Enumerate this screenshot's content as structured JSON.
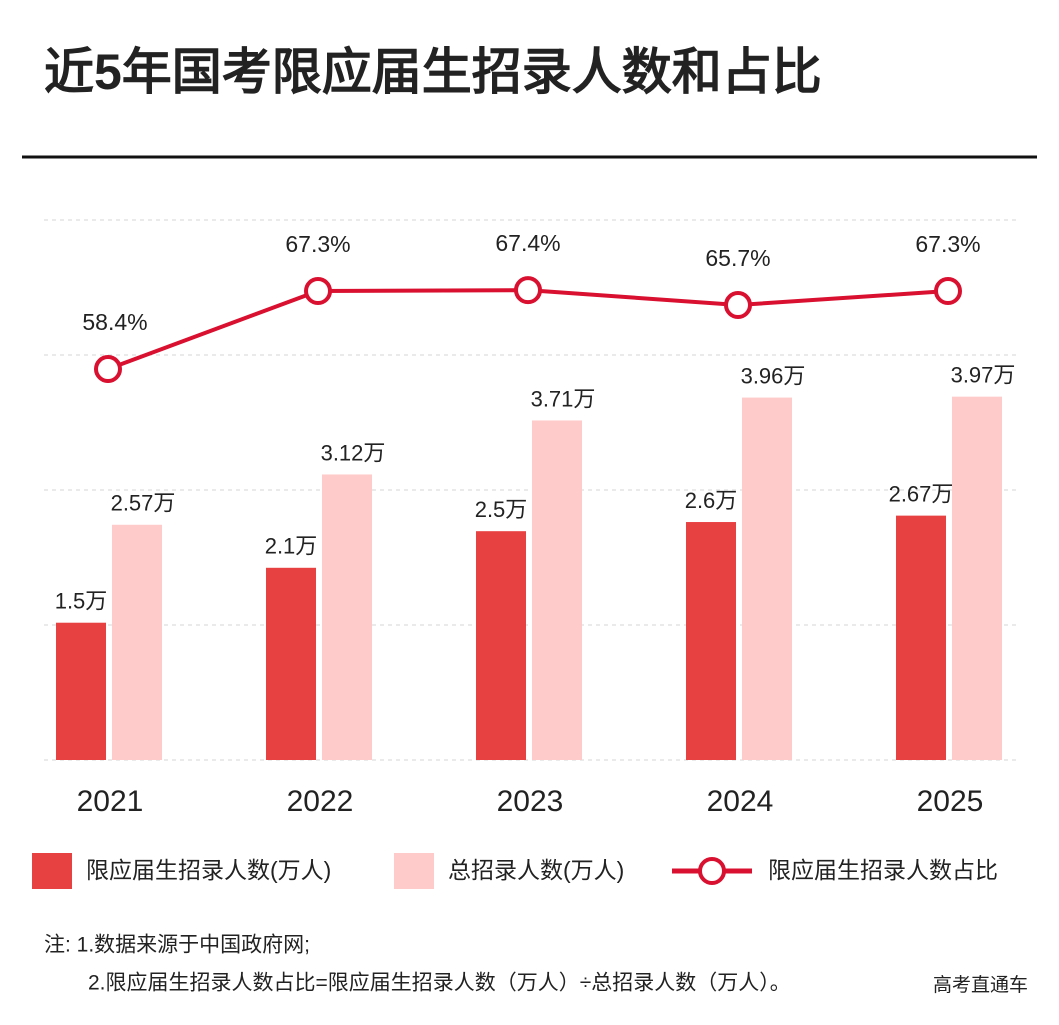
{
  "chart_data": {
    "type": "bar",
    "title": "近5年国考限应届生招录人数和占比",
    "categories": [
      "2021",
      "2022",
      "2023",
      "2024",
      "2025"
    ],
    "series": [
      {
        "name": "限应届生招录人数(万人)",
        "color": "#e84142",
        "values": [
          1.5,
          2.1,
          2.5,
          2.6,
          2.67
        ],
        "value_labels": [
          "1.5万",
          "2.1万",
          "2.5万",
          "2.6万",
          "2.67万"
        ]
      },
      {
        "name": "总招录人数(万人)",
        "color": "#ffcaca",
        "values": [
          2.57,
          3.12,
          3.71,
          3.96,
          3.97
        ],
        "value_labels": [
          "2.57万",
          "3.12万",
          "3.71万",
          "3.96万",
          "3.97万"
        ]
      },
      {
        "name": "限应届生招录人数占比",
        "color": "#d9102f",
        "type": "line",
        "axis": "y2",
        "values": [
          58.4,
          67.3,
          67.4,
          65.7,
          67.3
        ],
        "value_labels": [
          "58.4%",
          "67.3%",
          "67.4%",
          "65.7%",
          "67.3%"
        ]
      }
    ],
    "ylim": [
      0,
      5.9
    ],
    "y2lim": [
      13.8,
      75.4
    ]
  },
  "notes": [
    "注: 1.数据来源于中国政府网;",
    "2.限应届生招录人数占比=限应届生招录人数（万人）÷总招录人数（万人）。"
  ],
  "source": "高考直通车"
}
